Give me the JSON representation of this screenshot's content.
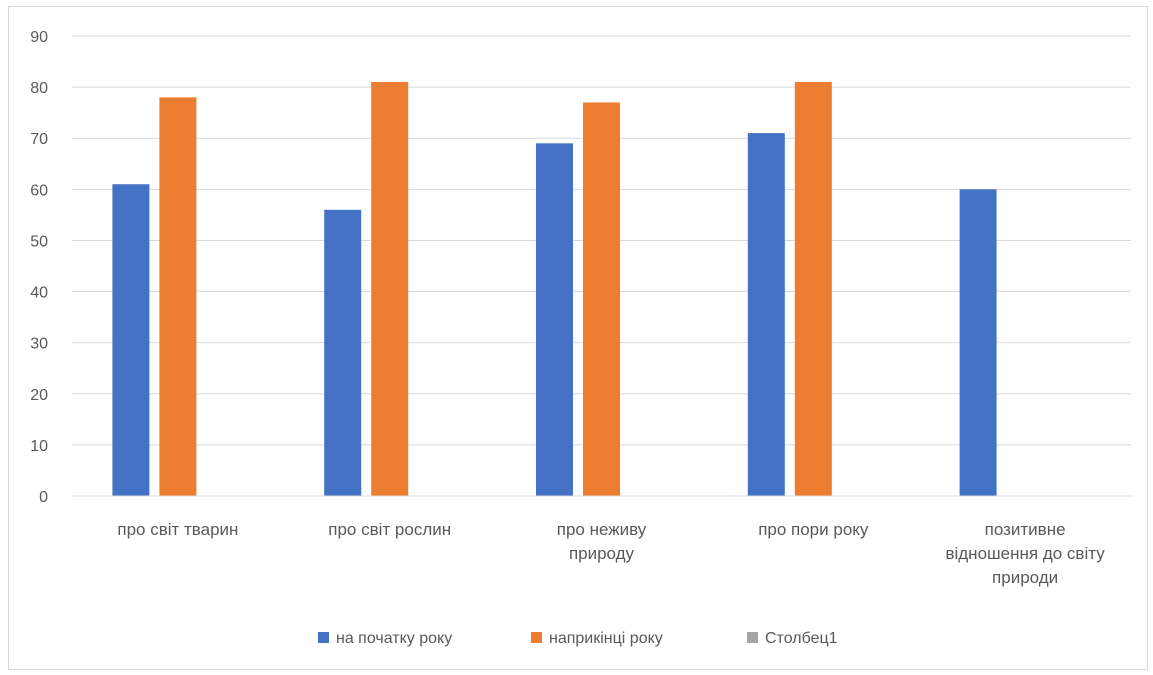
{
  "chart_data": {
    "type": "bar",
    "title": "",
    "xlabel": "",
    "ylabel": "",
    "categories": [
      [
        "про світ тварин"
      ],
      [
        "про світ рослин"
      ],
      [
        "про неживу",
        "природу"
      ],
      [
        "про пори року"
      ],
      [
        "позитивне",
        "відношення до світу",
        "природи"
      ]
    ],
    "series": [
      {
        "name": "на початку року",
        "color": "#4472c4",
        "values": [
          61,
          56,
          69,
          71,
          60
        ]
      },
      {
        "name": "наприкінці року",
        "color": "#ed7d31",
        "values": [
          78,
          81,
          77,
          81,
          null
        ]
      },
      {
        "name": "Столбец1",
        "color": "#a5a5a5",
        "values": [
          null,
          null,
          null,
          null,
          null
        ]
      }
    ],
    "ylim": [
      0,
      90
    ],
    "yticks": [
      0,
      10,
      20,
      30,
      40,
      50,
      60,
      70,
      80,
      90
    ],
    "grid": true,
    "legend_position": "bottom"
  }
}
